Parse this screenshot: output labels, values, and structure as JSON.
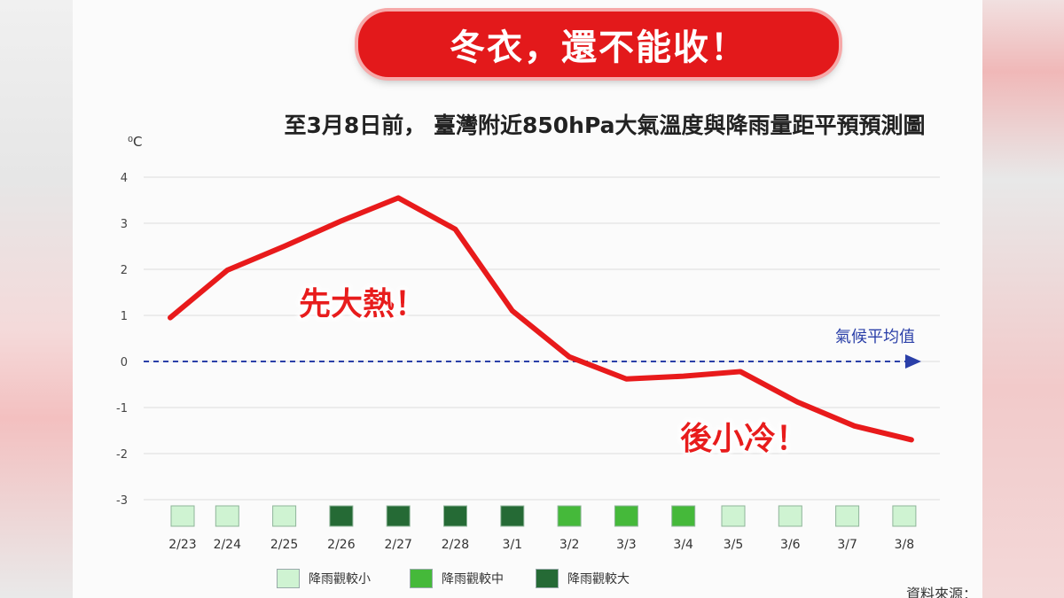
{
  "banner": {
    "text": "冬衣，還不能收！"
  },
  "title": "至3月8日前， 臺灣附近850hPa大氣溫度與降雨量距平預預測圖",
  "colors": {
    "line": "#e81a1b",
    "baseline": "#2a3fa8",
    "rain_small": "#cff3d2",
    "rain_medium": "#45b93a",
    "rain_large": "#256a35"
  },
  "chart_data": {
    "type": "line",
    "ylabel": "⁰C",
    "ylim": [
      -3,
      4
    ],
    "yticks": [
      "4",
      "3",
      "2",
      "1",
      "0",
      "-1",
      "-2",
      "-3"
    ],
    "ytick_values": [
      4,
      3,
      2,
      1,
      0,
      -1,
      -2,
      -3
    ],
    "categories": [
      "2/23",
      "2/24",
      "2/25",
      "2/26",
      "2/27",
      "2/28",
      "3/1",
      "3/2",
      "3/3",
      "3/4",
      "3/5",
      "3/6",
      "3/7",
      "3/8"
    ],
    "series": [
      {
        "values": [
          0.95,
          1.98,
          2.5,
          3.05,
          3.55,
          2.87,
          1.1,
          0.1,
          -0.38,
          -0.32,
          -0.22,
          -0.88,
          -1.4,
          -1.7
        ]
      }
    ],
    "baseline": {
      "value": 0,
      "label": "氣候平均值"
    },
    "annotations": [
      {
        "text": "先大熱！",
        "near_category": "2/25"
      },
      {
        "text": "後小冷！",
        "near_category": "3/6"
      }
    ],
    "rain_anomaly": [
      "small",
      "small",
      "small",
      "large",
      "large",
      "large",
      "large",
      "medium",
      "medium",
      "medium",
      "small",
      "small",
      "small",
      "small"
    ],
    "grid": true
  },
  "legend": [
    {
      "key": "small",
      "label": "降雨觀較小"
    },
    {
      "key": "medium",
      "label": "降雨觀較中"
    },
    {
      "key": "large",
      "label": "降雨觀較大"
    }
  ],
  "source": "資料來源：CWA"
}
